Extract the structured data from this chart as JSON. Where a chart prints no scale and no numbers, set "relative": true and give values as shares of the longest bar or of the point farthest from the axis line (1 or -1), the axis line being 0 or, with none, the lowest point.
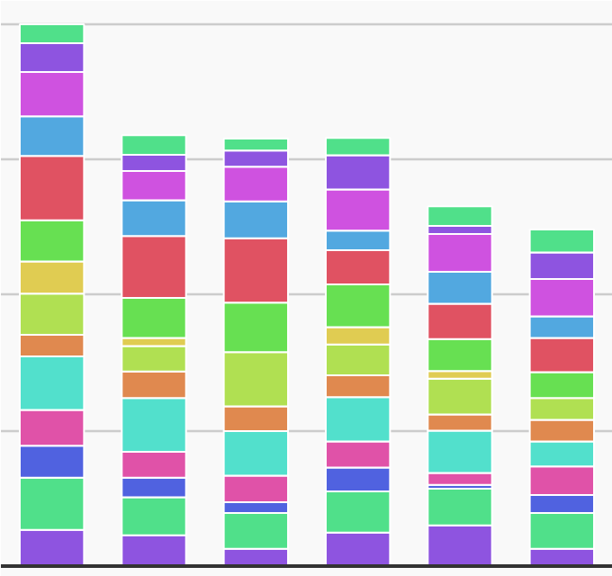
{
  "chart_data": {
    "type": "bar",
    "stacked": true,
    "relative": true,
    "grid": "y",
    "categories": [
      null,
      null,
      null,
      null,
      null,
      null
    ],
    "series": [
      {
        "color": "#8e54e0",
        "values": [
          0.067,
          0.057,
          0.032,
          0.062,
          0.075,
          0.032
        ]
      },
      {
        "color": "#50e08a",
        "values": [
          0.096,
          0.07,
          0.066,
          0.076,
          0.068,
          0.066
        ]
      },
      {
        "color": "#5062e0",
        "values": [
          0.059,
          0.036,
          0.02,
          0.044,
          0.007,
          0.033
        ]
      },
      {
        "color": "#e052a8",
        "values": [
          0.066,
          0.048,
          0.049,
          0.048,
          0.022,
          0.053
        ]
      },
      {
        "color": "#52e0cc",
        "values": [
          0.099,
          0.099,
          0.082,
          0.082,
          0.078,
          0.046
        ]
      },
      {
        "color": "#e0894f",
        "values": [
          0.04,
          0.049,
          0.046,
          0.04,
          0.03,
          0.04
        ]
      },
      {
        "color": "#b0e052",
        "values": [
          0.076,
          0.047,
          0.1,
          0.057,
          0.066,
          0.04
        ]
      },
      {
        "color": "#e0cc52",
        "values": [
          0.059,
          0.015,
          0,
          0.032,
          0.014,
          0
        ]
      },
      {
        "color": "#67e052",
        "values": [
          0.076,
          0.074,
          0.091,
          0.079,
          0.059,
          0.048
        ]
      },
      {
        "color": "#e05262",
        "values": [
          0.119,
          0.114,
          0.119,
          0.063,
          0.065,
          0.063
        ]
      },
      {
        "color": "#52a8e0",
        "values": [
          0.073,
          0.066,
          0.068,
          0.036,
          0.059,
          0.04
        ]
      },
      {
        "color": "#cf52e0",
        "values": [
          0.082,
          0.054,
          0.064,
          0.076,
          0.07,
          0.069
        ]
      },
      {
        "color": "#8e54e0",
        "values": [
          0.053,
          0.03,
          0.03,
          0.063,
          0.015,
          0.049
        ]
      },
      {
        "color": "#50e08a",
        "values": [
          0.035,
          0.036,
          0.022,
          0.032,
          0.036,
          0.042
        ]
      }
    ]
  }
}
